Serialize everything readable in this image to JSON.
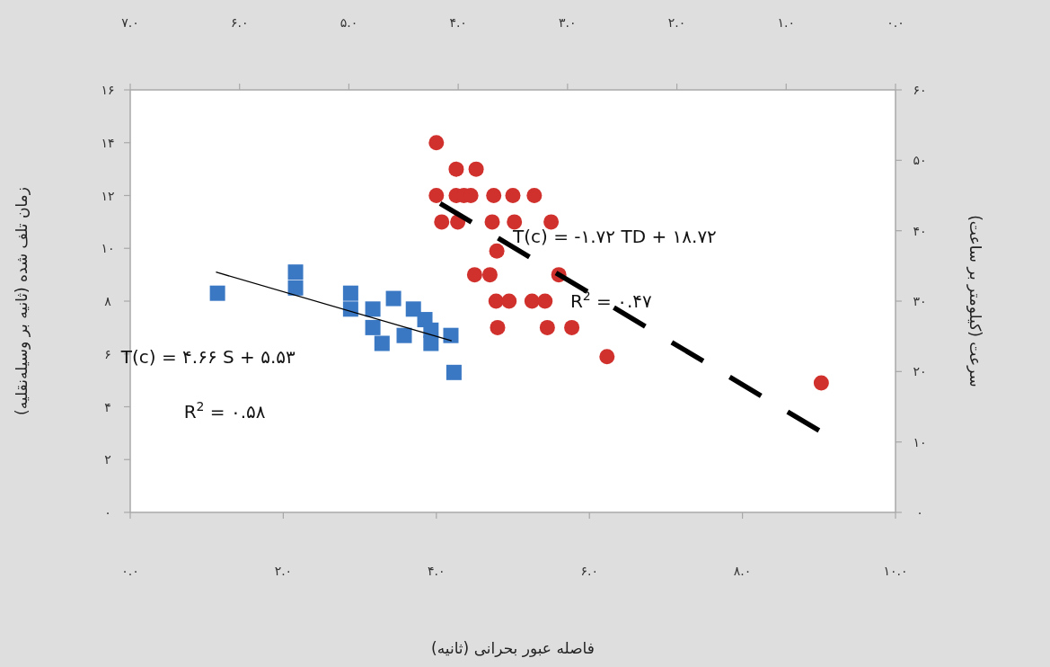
{
  "chart_data": {
    "type": "scatter",
    "xlabel": "فاصله عبور بحرانی (ثانیه)",
    "ylabel": "زمان تلف شده (ثانیه بر وسیله‌نقلیه)",
    "y2label": "سرعت (کیلومتر بر ساعت)",
    "xlim": [
      0,
      10
    ],
    "xticks": [
      {
        "value": 0,
        "label": "۰.۰"
      },
      {
        "value": 2,
        "label": "۲.۰"
      },
      {
        "value": 4,
        "label": "۴.۰"
      },
      {
        "value": 6,
        "label": "۶.۰"
      },
      {
        "value": 8,
        "label": "۸.۰"
      },
      {
        "value": 10,
        "label": "۱۰.۰"
      }
    ],
    "x2lim": [
      7,
      0
    ],
    "x2ticks": [
      {
        "value": 7,
        "label": "۷.۰"
      },
      {
        "value": 6,
        "label": "۶.۰"
      },
      {
        "value": 5,
        "label": "۵.۰"
      },
      {
        "value": 4,
        "label": "۴.۰"
      },
      {
        "value": 3,
        "label": "۳.۰"
      },
      {
        "value": 2,
        "label": "۲.۰"
      },
      {
        "value": 1,
        "label": "۱.۰"
      },
      {
        "value": 0,
        "label": "۰.۰"
      }
    ],
    "ylim": [
      0,
      16
    ],
    "yticks": [
      {
        "value": 0,
        "label": "۰"
      },
      {
        "value": 2,
        "label": "۲"
      },
      {
        "value": 4,
        "label": "۴"
      },
      {
        "value": 6,
        "label": "۶"
      },
      {
        "value": 8,
        "label": "۸"
      },
      {
        "value": 10,
        "label": "۱۰"
      },
      {
        "value": 12,
        "label": "۱۲"
      },
      {
        "value": 14,
        "label": "۱۴"
      },
      {
        "value": 16,
        "label": "۱۶"
      }
    ],
    "y2lim": [
      0,
      60
    ],
    "y2ticks": [
      {
        "value": 0,
        "label": "۰"
      },
      {
        "value": 10,
        "label": "۱۰"
      },
      {
        "value": 20,
        "label": "۲۰"
      },
      {
        "value": 30,
        "label": "۳۰"
      },
      {
        "value": 40,
        "label": "۴۰"
      },
      {
        "value": 50,
        "label": "۵۰"
      },
      {
        "value": 60,
        "label": "۶۰"
      }
    ],
    "series": [
      {
        "marker": "square",
        "color": "#3a78c4",
        "x": [
          1.14,
          2.16,
          2.16,
          2.88,
          2.88,
          3.17,
          3.17,
          3.29,
          3.44,
          3.58,
          3.7,
          3.85,
          3.93,
          3.93,
          4.19,
          4.23
        ],
        "values": [
          8.3,
          9.1,
          8.5,
          8.3,
          7.7,
          7.7,
          7.0,
          6.4,
          8.1,
          6.7,
          7.7,
          7.3,
          6.9,
          6.4,
          6.7,
          5.3
        ]
      },
      {
        "marker": "circle",
        "color": "#d0312d",
        "x": [
          4.0,
          4.26,
          4.52,
          4.0,
          4.26,
          4.36,
          4.45,
          4.75,
          5.0,
          5.28,
          4.07,
          4.28,
          4.73,
          5.02,
          5.5,
          4.79,
          4.5,
          4.7,
          5.6,
          4.78,
          4.95,
          5.25,
          5.42,
          4.8,
          5.45,
          5.77,
          6.23,
          9.03
        ],
        "values": [
          14.0,
          13.0,
          13.0,
          12.0,
          12.0,
          12.0,
          12.0,
          12.0,
          12.0,
          12.0,
          11.0,
          11.0,
          11.0,
          11.0,
          11.0,
          9.9,
          9.0,
          9.0,
          9.0,
          8.0,
          8.0,
          8.0,
          8.0,
          7.0,
          7.0,
          7.0,
          5.9,
          4.9
        ]
      },
      {
        "type": "line",
        "line_style": "solid",
        "color": "#000000",
        "x": [
          1.12,
          4.2
        ],
        "values": [
          9.1,
          6.5
        ]
      },
      {
        "type": "line",
        "line_style": "dashed",
        "color": "#000000",
        "x": [
          4.05,
          9.0
        ],
        "values": [
          11.7,
          3.1
        ]
      }
    ],
    "annotations": [
      "T(c) = ۴.۶۶ S + ۵.۵۳",
      "R$^{2}$ = ۰.۵۸",
      "T(c) = -۱.۷۲ TD + ۱۸.۷۲",
      "R$^{2}$ = ۰.۴۷"
    ]
  }
}
